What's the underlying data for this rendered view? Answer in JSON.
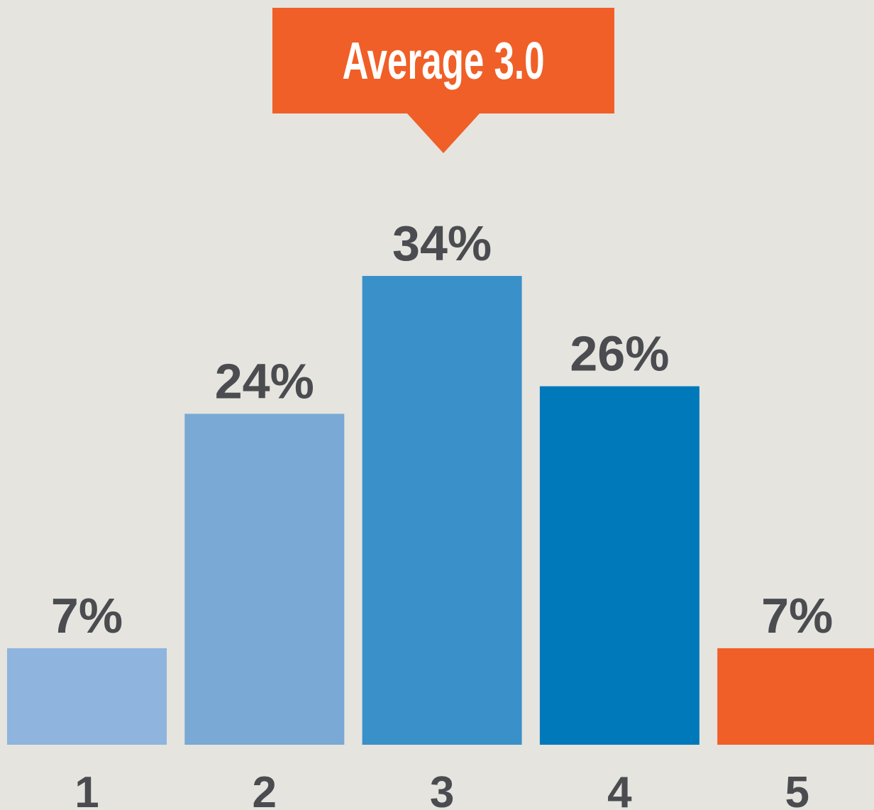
{
  "chart_data": {
    "type": "bar",
    "annotation": "Average 3.0",
    "categories": [
      "1",
      "2",
      "3",
      "4",
      "5"
    ],
    "values": [
      7,
      24,
      34,
      26,
      7
    ],
    "value_labels": [
      "7%",
      "24%",
      "34%",
      "26%",
      "7%"
    ],
    "colors": [
      "#8fb4dd",
      "#79a9d4",
      "#3a90c8",
      "#0079bb",
      "#f05f27"
    ]
  }
}
